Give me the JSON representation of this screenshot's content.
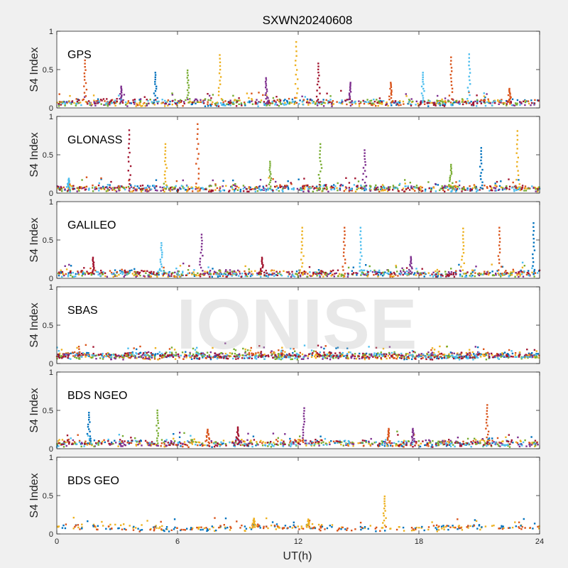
{
  "figure": {
    "title": "SXWN20240608",
    "watermark": "IONISE",
    "xlabel": "UT(h)",
    "xticks": [
      "0",
      "6",
      "12",
      "18",
      "24"
    ],
    "xlim": [
      0,
      24
    ]
  },
  "series_colors": [
    "#0072bd",
    "#d95319",
    "#edb120",
    "#7e2f8e",
    "#77ac30",
    "#4dbeee",
    "#a2142f"
  ],
  "chart_data": [
    {
      "type": "scatter",
      "panel": "GPS",
      "ylabel": "S4 Index",
      "ylim": [
        0,
        1
      ],
      "yticks": [
        "0",
        "0.5",
        "1"
      ],
      "baseline": 0.07,
      "spikes": [
        {
          "x": 1.4,
          "y": 0.62,
          "color": 1
        },
        {
          "x": 3.2,
          "y": 0.28,
          "color": 3
        },
        {
          "x": 4.9,
          "y": 0.46,
          "color": 0
        },
        {
          "x": 6.5,
          "y": 0.49,
          "color": 4
        },
        {
          "x": 8.1,
          "y": 0.69,
          "color": 2
        },
        {
          "x": 10.4,
          "y": 0.39,
          "color": 3
        },
        {
          "x": 11.9,
          "y": 0.86,
          "color": 2
        },
        {
          "x": 13.0,
          "y": 0.58,
          "color": 6
        },
        {
          "x": 14.6,
          "y": 0.33,
          "color": 3
        },
        {
          "x": 16.6,
          "y": 0.33,
          "color": 1
        },
        {
          "x": 18.2,
          "y": 0.46,
          "color": 5
        },
        {
          "x": 19.6,
          "y": 0.66,
          "color": 1
        },
        {
          "x": 20.5,
          "y": 0.7,
          "color": 5
        },
        {
          "x": 22.5,
          "y": 0.25,
          "color": 1
        }
      ]
    },
    {
      "type": "scatter",
      "panel": "GLONASS",
      "ylabel": "S4 Index",
      "ylim": [
        0,
        1
      ],
      "yticks": [
        "0",
        "0.5",
        "1"
      ],
      "baseline": 0.06,
      "spikes": [
        {
          "x": 0.6,
          "y": 0.19,
          "color": 5
        },
        {
          "x": 3.6,
          "y": 0.82,
          "color": 6
        },
        {
          "x": 5.4,
          "y": 0.64,
          "color": 2
        },
        {
          "x": 7.0,
          "y": 0.9,
          "color": 1
        },
        {
          "x": 10.6,
          "y": 0.41,
          "color": 4
        },
        {
          "x": 13.1,
          "y": 0.64,
          "color": 4
        },
        {
          "x": 15.3,
          "y": 0.56,
          "color": 3
        },
        {
          "x": 19.6,
          "y": 0.37,
          "color": 4
        },
        {
          "x": 21.1,
          "y": 0.59,
          "color": 0
        },
        {
          "x": 22.9,
          "y": 0.81,
          "color": 2
        }
      ]
    },
    {
      "type": "scatter",
      "panel": "GALILEO",
      "ylabel": "S4 Index",
      "ylim": [
        0,
        1
      ],
      "yticks": [
        "0",
        "0.5",
        "1"
      ],
      "baseline": 0.06,
      "spikes": [
        {
          "x": 1.8,
          "y": 0.27,
          "color": 6
        },
        {
          "x": 5.2,
          "y": 0.46,
          "color": 5
        },
        {
          "x": 7.2,
          "y": 0.57,
          "color": 3
        },
        {
          "x": 10.2,
          "y": 0.27,
          "color": 6
        },
        {
          "x": 12.2,
          "y": 0.66,
          "color": 2
        },
        {
          "x": 14.3,
          "y": 0.66,
          "color": 1
        },
        {
          "x": 15.1,
          "y": 0.66,
          "color": 5
        },
        {
          "x": 17.6,
          "y": 0.28,
          "color": 3
        },
        {
          "x": 20.2,
          "y": 0.65,
          "color": 2
        },
        {
          "x": 22.0,
          "y": 0.66,
          "color": 1
        },
        {
          "x": 23.7,
          "y": 0.72,
          "color": 0
        }
      ]
    },
    {
      "type": "scatter",
      "panel": "SBAS",
      "ylabel": "S4 Index",
      "ylim": [
        0,
        1
      ],
      "yticks": [
        "0",
        "0.5",
        "1"
      ],
      "baseline": 0.1,
      "spikes": []
    },
    {
      "type": "scatter",
      "panel": "BDS NGEO",
      "ylabel": "S4 Index",
      "ylim": [
        0,
        1
      ],
      "yticks": [
        "0",
        "0.5",
        "1"
      ],
      "baseline": 0.07,
      "spikes": [
        {
          "x": 1.6,
          "y": 0.47,
          "color": 0
        },
        {
          "x": 5.0,
          "y": 0.5,
          "color": 4
        },
        {
          "x": 7.5,
          "y": 0.25,
          "color": 1
        },
        {
          "x": 9.0,
          "y": 0.28,
          "color": 6
        },
        {
          "x": 12.3,
          "y": 0.53,
          "color": 3
        },
        {
          "x": 16.5,
          "y": 0.26,
          "color": 1
        },
        {
          "x": 17.7,
          "y": 0.26,
          "color": 3
        },
        {
          "x": 21.4,
          "y": 0.57,
          "color": 1
        }
      ]
    },
    {
      "type": "scatter",
      "panel": "BDS GEO",
      "ylabel": "S4 Index",
      "ylim": [
        0,
        1
      ],
      "yticks": [
        "0",
        "0.5",
        "1"
      ],
      "baseline": 0.08,
      "spikes": [
        {
          "x": 9.8,
          "y": 0.2,
          "color": 2
        },
        {
          "x": 12.5,
          "y": 0.19,
          "color": 2
        },
        {
          "x": 16.3,
          "y": 0.49,
          "color": 2
        }
      ]
    }
  ]
}
